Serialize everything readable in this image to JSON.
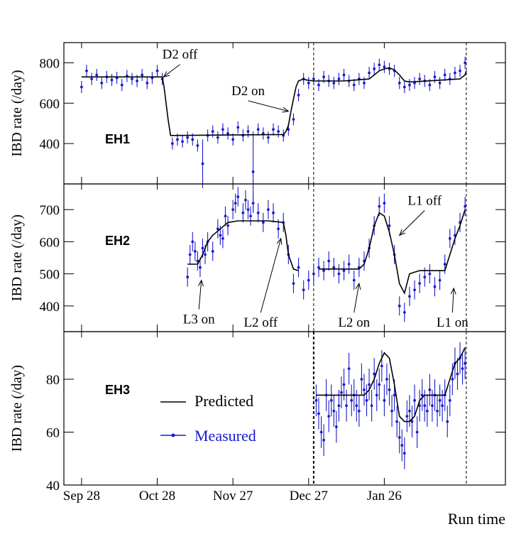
{
  "chart_data": {
    "type": "line",
    "xlabel": "Run time",
    "x_tick_labels": [
      "Sep 28",
      "Oct 28",
      "Nov 27",
      "Dec 27",
      "Jan 26"
    ],
    "x_tick_days": [
      0,
      30,
      60,
      90,
      120
    ],
    "xlim_days": [
      -7,
      168
    ],
    "vlines_days": [
      92,
      152.5
    ],
    "legend": {
      "placement": "middle-left of bottom panel",
      "predicted_label": "Predicted",
      "measured_label": "Measured"
    },
    "colors": {
      "predicted": "#000000",
      "measured": "#1a1acc"
    },
    "panels": [
      {
        "name": "EH1",
        "ylabel": "IBD rate (/day)",
        "ylim": [
          200,
          900
        ],
        "yticks": [
          400,
          600,
          800
        ],
        "predicted": {
          "x": [
            0,
            32,
            32.7,
            34.3,
            35.3,
            80,
            81,
            82,
            83,
            84,
            85,
            86,
            88,
            89,
            92,
            104,
            114,
            116,
            118,
            120,
            122,
            124,
            126,
            128,
            130,
            150,
            152,
            152.5
          ],
          "y": [
            730,
            730,
            680,
            520,
            440,
            445,
            460,
            490,
            560,
            620,
            680,
            710,
            720,
            715,
            710,
            710,
            720,
            740,
            760,
            770,
            775,
            765,
            740,
            710,
            705,
            720,
            740,
            760
          ]
        },
        "measured": {
          "x": [
            0,
            2,
            4,
            6,
            8,
            10,
            12,
            14,
            16,
            18,
            20,
            22,
            24,
            26,
            28,
            30,
            32,
            36,
            38,
            40,
            42,
            44,
            46,
            48,
            50,
            52,
            54,
            56,
            58,
            60,
            62,
            64,
            66,
            68,
            70,
            72,
            74,
            76,
            78,
            80,
            82,
            84,
            86,
            88,
            90,
            92,
            94,
            96,
            98,
            100,
            102,
            104,
            106,
            108,
            110,
            112,
            114,
            116,
            118,
            120,
            122,
            124,
            126,
            128,
            130,
            132,
            134,
            136,
            138,
            140,
            142,
            144,
            146,
            148,
            150,
            152
          ],
          "y": [
            680,
            760,
            720,
            740,
            700,
            730,
            715,
            725,
            690,
            735,
            720,
            710,
            740,
            700,
            725,
            760,
            720,
            400,
            420,
            410,
            430,
            420,
            390,
            300,
            440,
            460,
            430,
            470,
            450,
            420,
            480,
            440,
            460,
            260,
            470,
            450,
            430,
            470,
            460,
            440,
            470,
            520,
            640,
            720,
            700,
            720,
            690,
            730,
            710,
            700,
            720,
            740,
            710,
            690,
            720,
            700,
            750,
            770,
            790,
            780,
            770,
            760,
            700,
            680,
            690,
            700,
            720,
            710,
            690,
            730,
            700,
            740,
            720,
            750,
            760,
            800
          ],
          "err": [
            30,
            30,
            30,
            30,
            30,
            30,
            30,
            30,
            30,
            30,
            30,
            30,
            30,
            30,
            30,
            30,
            30,
            30,
            30,
            30,
            30,
            30,
            30,
            120,
            30,
            30,
            30,
            30,
            30,
            30,
            30,
            30,
            30,
            200,
            30,
            30,
            30,
            30,
            30,
            30,
            30,
            30,
            30,
            30,
            30,
            30,
            30,
            30,
            30,
            30,
            30,
            30,
            30,
            30,
            30,
            30,
            30,
            30,
            30,
            30,
            30,
            30,
            30,
            30,
            30,
            30,
            30,
            30,
            30,
            30,
            30,
            30,
            30,
            30,
            30,
            30
          ]
        },
        "annotations": [
          {
            "text": "D2 off",
            "x": 39,
            "y": 820,
            "ax": 32.5,
            "ay": 730
          },
          {
            "text": "D2 on",
            "x": 66,
            "y": 640,
            "ax": 82,
            "ay": 560
          }
        ]
      },
      {
        "name": "EH2",
        "ylabel": "IBD rate (/day)",
        "ylim": [
          320,
          780
        ],
        "yticks": [
          400,
          500,
          600,
          700
        ],
        "predicted": {
          "x": [
            42,
            46,
            48,
            50,
            52,
            55,
            58,
            62,
            66,
            70,
            74,
            80,
            81,
            82,
            84,
            86,
            90,
            94,
            110,
            112,
            114,
            116,
            118,
            120,
            122,
            124,
            126,
            128,
            130,
            132,
            134,
            136,
            138,
            140,
            142,
            144,
            146,
            148,
            150,
            152
          ],
          "y": [
            530,
            530,
            560,
            600,
            620,
            640,
            660,
            665,
            665,
            665,
            665,
            660,
            620,
            560,
            515,
            510,
            512,
            515,
            515,
            530,
            580,
            650,
            690,
            680,
            630,
            560,
            470,
            440,
            500,
            505,
            510,
            510,
            510,
            510,
            510,
            510,
            560,
            610,
            650,
            700
          ],
          "gaps": [
            [
              86.5,
              88.5
            ],
            [
              91.5,
              92.5
            ]
          ]
        },
        "measured": {
          "x": [
            42,
            43,
            44,
            45,
            46,
            47,
            48,
            49,
            50,
            52,
            54,
            55,
            56,
            57,
            58,
            60,
            61,
            62,
            64,
            65,
            66,
            67,
            68,
            70,
            72,
            74,
            76,
            78,
            80,
            82,
            84,
            86,
            88,
            90,
            92,
            94,
            96,
            98,
            100,
            102,
            104,
            106,
            108,
            110,
            112,
            114,
            116,
            118,
            120,
            122,
            124,
            126,
            128,
            130,
            132,
            134,
            136,
            138,
            140,
            142,
            144,
            146,
            148,
            150,
            152
          ],
          "y": [
            490,
            560,
            600,
            570,
            540,
            520,
            580,
            560,
            600,
            570,
            640,
            620,
            610,
            680,
            650,
            700,
            720,
            740,
            690,
            730,
            700,
            680,
            720,
            690,
            660,
            700,
            690,
            640,
            660,
            560,
            470,
            520,
            450,
            480,
            500,
            520,
            510,
            540,
            520,
            500,
            510,
            530,
            480,
            520,
            540,
            580,
            650,
            710,
            720,
            650,
            560,
            400,
            380,
            430,
            450,
            470,
            490,
            500,
            460,
            480,
            530,
            610,
            620,
            660,
            710
          ],
          "err": [
            30,
            30,
            30,
            30,
            30,
            30,
            30,
            30,
            30,
            30,
            30,
            30,
            30,
            30,
            30,
            30,
            30,
            30,
            30,
            30,
            30,
            30,
            30,
            30,
            30,
            30,
            30,
            30,
            30,
            30,
            30,
            30,
            30,
            30,
            30,
            30,
            30,
            30,
            30,
            30,
            30,
            30,
            30,
            30,
            30,
            30,
            30,
            30,
            30,
            30,
            30,
            30,
            30,
            30,
            30,
            30,
            30,
            30,
            30,
            30,
            30,
            30,
            30,
            30,
            30
          ]
        },
        "annotations": [
          {
            "text": "L3 on",
            "x": 46.5,
            "y": 345,
            "ax": 47.5,
            "ay": 480
          },
          {
            "text": "L2 off",
            "x": 71,
            "y": 335,
            "ax": 79,
            "ay": 610
          },
          {
            "text": "L2 on",
            "x": 108,
            "y": 335,
            "ax": 110,
            "ay": 470
          },
          {
            "text": "L1 off",
            "x": 136,
            "y": 715,
            "ax": 126,
            "ay": 620
          },
          {
            "text": "L1 on",
            "x": 147,
            "y": 335,
            "ax": 147.5,
            "ay": 455
          }
        ]
      },
      {
        "name": "EH3",
        "ylabel": "IBD rate (/day)",
        "ylim": [
          40,
          98
        ],
        "yticks": [
          40,
          60,
          80
        ],
        "predicted": {
          "x": [
            93,
            112,
            114,
            116,
            118,
            120,
            122,
            124,
            126,
            128,
            130,
            132,
            134,
            136,
            138,
            140,
            142,
            144,
            146,
            148,
            150,
            152
          ],
          "y": [
            74,
            74,
            76,
            80,
            86,
            90,
            88,
            78,
            66,
            64,
            64,
            66,
            72,
            74,
            74,
            74,
            74,
            74,
            80,
            86,
            88,
            92
          ]
        },
        "measured": {
          "x": [
            93,
            94,
            95,
            96,
            97,
            98,
            99,
            100,
            101,
            102,
            103,
            104,
            105,
            106,
            107,
            108,
            109,
            110,
            111,
            112,
            113,
            114,
            115,
            116,
            117,
            118,
            119,
            120,
            121,
            122,
            123,
            124,
            125,
            126,
            127,
            128,
            129,
            130,
            131,
            132,
            133,
            134,
            135,
            136,
            137,
            138,
            139,
            140,
            141,
            142,
            143,
            144,
            145,
            146,
            147,
            148,
            149,
            150,
            151,
            152
          ],
          "y": [
            72,
            67,
            60,
            57,
            74,
            66,
            72,
            68,
            62,
            70,
            75,
            78,
            70,
            84,
            72,
            74,
            70,
            68,
            80,
            76,
            72,
            78,
            70,
            82,
            74,
            78,
            85,
            72,
            80,
            76,
            68,
            74,
            64,
            58,
            55,
            52,
            66,
            68,
            64,
            72,
            60,
            70,
            74,
            70,
            68,
            76,
            70,
            74,
            68,
            72,
            70,
            74,
            64,
            72,
            80,
            86,
            82,
            88,
            84,
            86
          ],
          "err": [
            6,
            6,
            6,
            6,
            6,
            6,
            6,
            6,
            6,
            6,
            6,
            6,
            6,
            6,
            6,
            6,
            6,
            6,
            6,
            6,
            6,
            6,
            6,
            6,
            6,
            6,
            6,
            6,
            6,
            6,
            6,
            6,
            6,
            6,
            6,
            6,
            6,
            6,
            6,
            6,
            6,
            6,
            6,
            6,
            6,
            6,
            6,
            6,
            6,
            6,
            6,
            6,
            6,
            6,
            6,
            6,
            6,
            6,
            6,
            6
          ]
        },
        "annotations": []
      }
    ]
  }
}
